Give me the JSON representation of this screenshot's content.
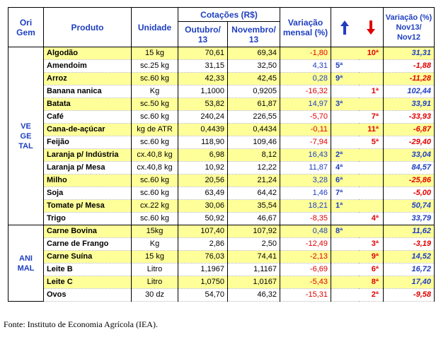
{
  "header": {
    "origem": "Ori\nGem",
    "produto": "Produto",
    "unidade": "Unidade",
    "cotacoes": "Cotações (R$)",
    "outubro": "Outubro/\n13",
    "novembro": "Novembro/\n13",
    "variacao_mensal": "Variação\nmensal (%)",
    "variacao_anual": "Variação (%)\nNov13/\nNov12",
    "arrow_up_color": "#1f3fc0",
    "arrow_down_color": "#e00000"
  },
  "groups": {
    "vegetal": "VE\nGE\nTAL",
    "animal": "ANI\nMAL"
  },
  "vegetal_rows": [
    {
      "produto": "Algodão",
      "unidade": "15 kg",
      "out": "70,61",
      "nov": "69,34",
      "var": "-1,80",
      "up": "",
      "down": "10ª",
      "anual": "31,31",
      "hl": true
    },
    {
      "produto": "Amendoim",
      "unidade": "sc.25 kg",
      "out": "31,15",
      "nov": "32,50",
      "var": "4,31",
      "up": "5ª",
      "down": "",
      "anual": "-1,88",
      "hl": false
    },
    {
      "produto": "Arroz",
      "unidade": "sc.60 kg",
      "out": "42,33",
      "nov": "42,45",
      "var": "0,28",
      "up": "9ª",
      "down": "",
      "anual": "-11,28",
      "hl": true
    },
    {
      "produto": "Banana nanica",
      "unidade": "Kg",
      "out": "1,1000",
      "nov": "0,9205",
      "var": "-16,32",
      "up": "",
      "down": "1ª",
      "anual": "102,44",
      "hl": false
    },
    {
      "produto": "Batata",
      "unidade": "sc.50 kg",
      "out": "53,82",
      "nov": "61,87",
      "var": "14,97",
      "up": "3ª",
      "down": "",
      "anual": "33,91",
      "hl": true
    },
    {
      "produto": "Café",
      "unidade": "sc.60 kg",
      "out": "240,24",
      "nov": "226,55",
      "var": "-5,70",
      "up": "",
      "down": "7ª",
      "anual": "-33,93",
      "hl": false
    },
    {
      "produto": "Cana-de-açúcar",
      "unidade": "kg de ATR",
      "out": "0,4439",
      "nov": "0,4434",
      "var": "-0,11",
      "up": "",
      "down": "11ª",
      "anual": "-6,87",
      "hl": true
    },
    {
      "produto": "Feijão",
      "unidade": "sc.60 kg",
      "out": "118,90",
      "nov": "109,46",
      "var": "-7,94",
      "up": "",
      "down": "5ª",
      "anual": "-29,40",
      "hl": false
    },
    {
      "produto": "Laranja p/ Indústria",
      "unidade": "cx.40,8 kg",
      "out": "6,98",
      "nov": "8,12",
      "var": "16,43",
      "up": "2ª",
      "down": "",
      "anual": "33,04",
      "hl": true
    },
    {
      "produto": "Laranja p/ Mesa",
      "unidade": "cx.40,8 kg",
      "out": "10,92",
      "nov": "12,22",
      "var": "11,87",
      "up": "4ª",
      "down": "",
      "anual": "84,57",
      "hl": false
    },
    {
      "produto": "Milho",
      "unidade": "sc.60 kg",
      "out": "20,56",
      "nov": "21,24",
      "var": "3,28",
      "up": "6ª",
      "down": "",
      "anual": "-25,86",
      "hl": true
    },
    {
      "produto": "Soja",
      "unidade": "sc.60 kg",
      "out": "63,49",
      "nov": "64,42",
      "var": "1,46",
      "up": "7ª",
      "down": "",
      "anual": "-5,00",
      "hl": false
    },
    {
      "produto": "Tomate p/ Mesa",
      "unidade": "cx.22 kg",
      "out": "30,06",
      "nov": "35,54",
      "var": "18,21",
      "up": "1ª",
      "down": "",
      "anual": "50,74",
      "hl": true
    },
    {
      "produto": "Trigo",
      "unidade": "sc.60 kg",
      "out": "50,92",
      "nov": "46,67",
      "var": "-8,35",
      "up": "",
      "down": "4ª",
      "anual": "33,79",
      "hl": false
    }
  ],
  "animal_rows": [
    {
      "produto": "Carne Bovina",
      "unidade": "15kg",
      "out": "107,40",
      "nov": "107,92",
      "var": "0,48",
      "up": "8ª",
      "down": "",
      "anual": "11,62",
      "hl": true
    },
    {
      "produto": "Carne de Frango",
      "unidade": "Kg",
      "out": "2,86",
      "nov": "2,50",
      "var": "-12,49",
      "up": "",
      "down": "3ª",
      "anual": "-3,19",
      "hl": false
    },
    {
      "produto": "Carne Suína",
      "unidade": "15 kg",
      "out": "76,03",
      "nov": "74,41",
      "var": "-2,13",
      "up": "",
      "down": "9ª",
      "anual": "14,52",
      "hl": true
    },
    {
      "produto": "Leite B",
      "unidade": "Litro",
      "out": "1,1967",
      "nov": "1,1167",
      "var": "-6,69",
      "up": "",
      "down": "6ª",
      "anual": "16,72",
      "hl": false
    },
    {
      "produto": "Leite C",
      "unidade": "Litro",
      "out": "1,0750",
      "nov": "1,0167",
      "var": "-5,43",
      "up": "",
      "down": "8ª",
      "anual": "17,40",
      "hl": true
    },
    {
      "produto": "Ovos",
      "unidade": "30 dz",
      "out": "54,70",
      "nov": "46,32",
      "var": "-15,31",
      "up": "",
      "down": "2ª",
      "anual": "-9,58",
      "hl": false
    }
  ],
  "source": "Fonte: Instituto de Economia Agrícola (IEA)."
}
